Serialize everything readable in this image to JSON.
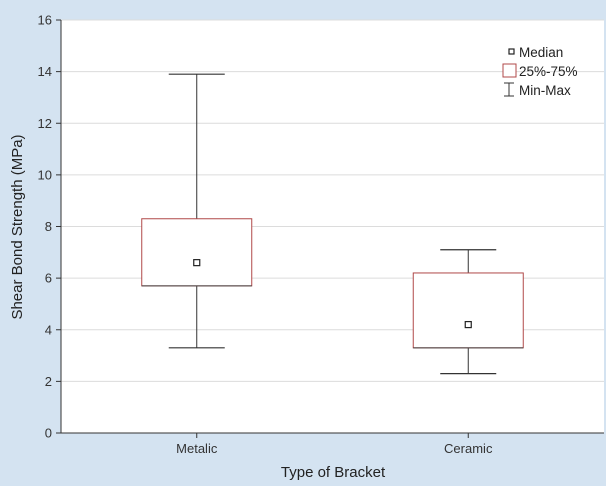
{
  "chart_data": {
    "type": "box",
    "xlabel": "Type of Bracket",
    "ylabel": "Shear Bond Strength (MPa)",
    "ylim": [
      0,
      16
    ],
    "yticks": [
      0,
      2,
      4,
      6,
      8,
      10,
      12,
      14,
      16
    ],
    "categories": [
      "Metalic",
      "Ceramic"
    ],
    "boxes": [
      {
        "category": "Metalic",
        "min": 3.3,
        "q1": 5.7,
        "median": 6.6,
        "q3": 8.3,
        "max": 13.9
      },
      {
        "category": "Ceramic",
        "min": 2.3,
        "q1": 3.3,
        "median": 4.2,
        "q3": 6.2,
        "max": 7.1
      }
    ],
    "legend": {
      "position": "top-right",
      "items": [
        {
          "symbol": "median",
          "label": "Median"
        },
        {
          "symbol": "box",
          "label": "25%-75%"
        },
        {
          "symbol": "whisker",
          "label": "Min-Max"
        }
      ]
    },
    "grid": "horizontal",
    "colors": {
      "background": "#d4e3f1",
      "plot": "#ffffff",
      "box": "#b04848",
      "whisker": "#333333",
      "grid": "#dcdcdc"
    }
  }
}
